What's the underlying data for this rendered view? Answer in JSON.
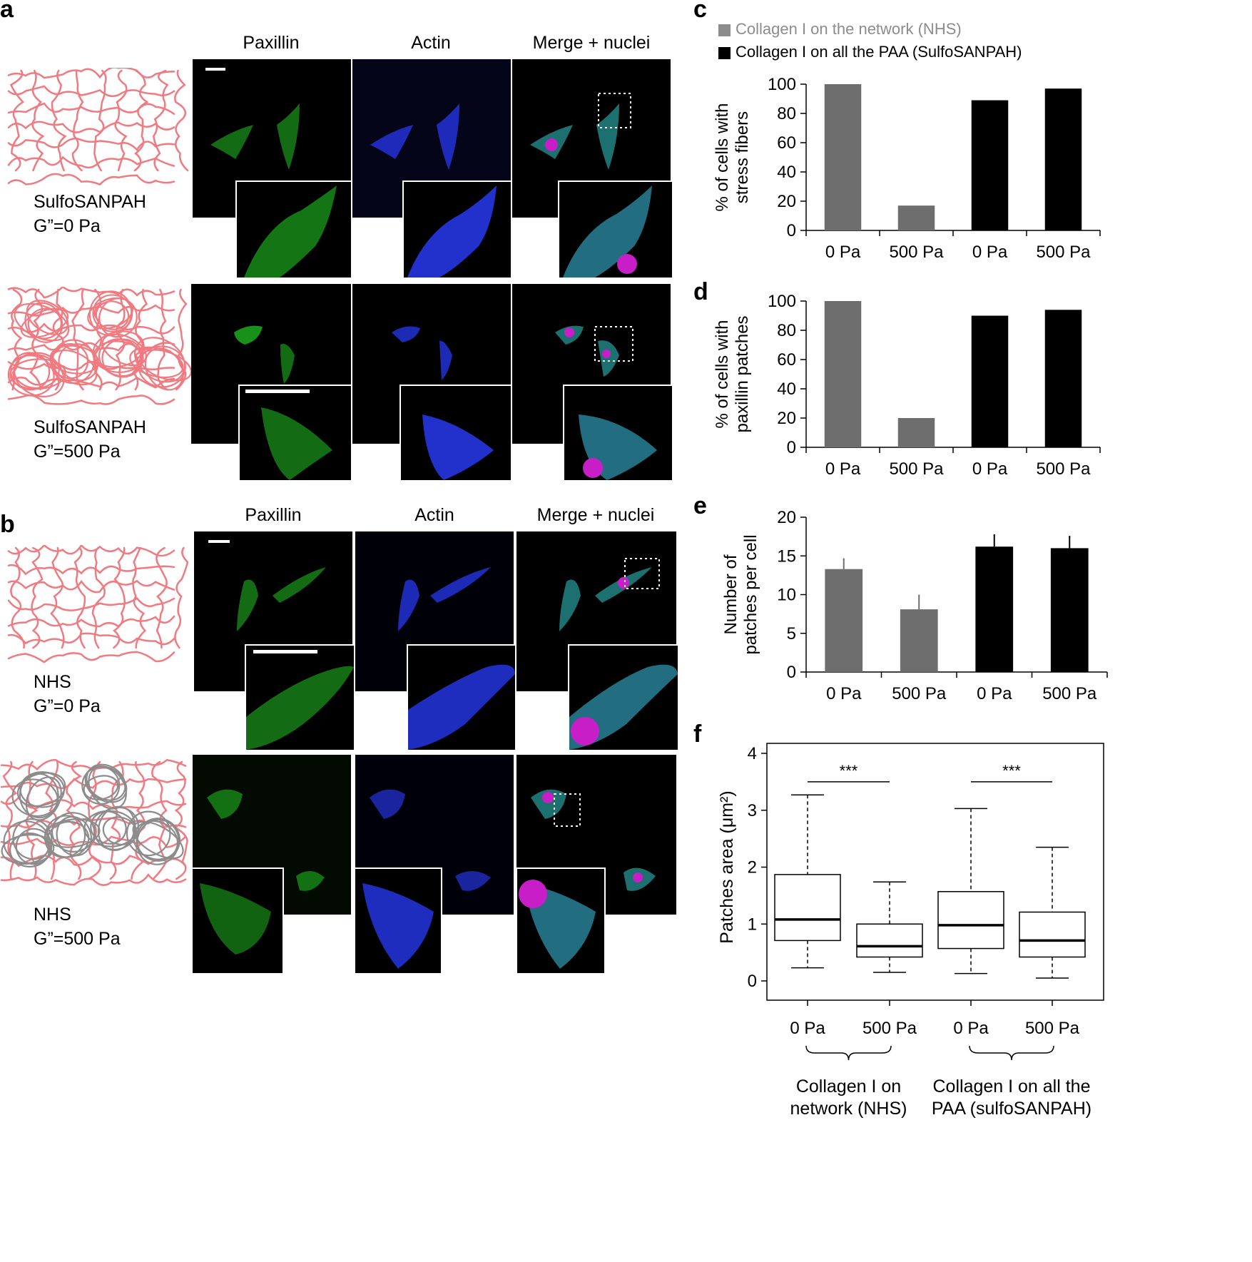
{
  "panel_labels": {
    "a": "a",
    "b": "b",
    "c": "c",
    "d": "d",
    "e": "e",
    "f": "f"
  },
  "panel_a": {
    "columns": [
      "Paxillin",
      "Actin",
      "Merge + nuclei"
    ],
    "rows": [
      {
        "line1": "SulfoSANPAH",
        "line2": "G”=0 Pa"
      },
      {
        "line1": "SulfoSANPAH",
        "line2": "G”=500 Pa"
      }
    ]
  },
  "panel_b": {
    "columns": [
      "Paxillin",
      "Actin",
      "Merge + nuclei"
    ],
    "rows": [
      {
        "line1": "NHS",
        "line2": "G”=0 Pa"
      },
      {
        "line1": "NHS",
        "line2": "G”=500 Pa"
      }
    ]
  },
  "colors": {
    "network": "#f07a80",
    "grafted_coil": "#8c8c8c",
    "nhs_bar": "#6e6e6e",
    "sulfo_bar": "#000000",
    "paxillin": "#1fb41f",
    "actin": "#2a3cff",
    "nuclei": "#c81ec8"
  },
  "icons": [
    "polymer-network-diagram",
    "scale-bar",
    "zoom-box"
  ],
  "legend": {
    "nhs": "Collagen I on the network (NHS)",
    "sulfo": "Collagen I on all the PAA (SulfoSANPAH)"
  },
  "chart_data": [
    {
      "id": "c",
      "type": "bar",
      "ylabel_line1": "% of cells with",
      "ylabel_line2": "stress fibers",
      "categories": [
        "0 Pa",
        "500 Pa",
        "0 Pa",
        "500 Pa"
      ],
      "groups": [
        "nhs",
        "nhs",
        "sulfo",
        "sulfo"
      ],
      "values": [
        100,
        17,
        89,
        97
      ],
      "ylim": [
        0,
        100
      ],
      "yticks": [
        0,
        20,
        40,
        60,
        80,
        100
      ]
    },
    {
      "id": "d",
      "type": "bar",
      "ylabel_line1": "% of cells with",
      "ylabel_line2": "paxillin patches",
      "categories": [
        "0 Pa",
        "500 Pa",
        "0 Pa",
        "500 Pa"
      ],
      "groups": [
        "nhs",
        "nhs",
        "sulfo",
        "sulfo"
      ],
      "values": [
        100,
        20,
        90,
        94
      ],
      "ylim": [
        0,
        100
      ],
      "yticks": [
        0,
        20,
        40,
        60,
        80,
        100
      ]
    },
    {
      "id": "e",
      "type": "bar",
      "ylabel_line1": "Number of",
      "ylabel_line2": "patches per cell",
      "categories": [
        "0 Pa",
        "500 Pa",
        "0 Pa",
        "500 Pa"
      ],
      "groups": [
        "nhs",
        "nhs",
        "sulfo",
        "sulfo"
      ],
      "values": [
        13.3,
        8.1,
        16.2,
        16.0
      ],
      "errors": [
        1.3,
        1.8,
        1.5,
        1.5
      ],
      "ylim": [
        0,
        20
      ],
      "yticks": [
        0,
        5,
        10,
        15,
        20
      ]
    },
    {
      "id": "f",
      "type": "box",
      "ylabel": "Patches area (μm²)",
      "categories": [
        "0 Pa",
        "500 Pa",
        "0 Pa",
        "500 Pa"
      ],
      "boxes": [
        {
          "min": 0.23,
          "q1": 0.71,
          "median": 1.08,
          "q3": 1.87,
          "max": 3.27
        },
        {
          "min": 0.15,
          "q1": 0.42,
          "median": 0.61,
          "q3": 1.0,
          "max": 1.74
        },
        {
          "min": 0.13,
          "q1": 0.57,
          "median": 0.98,
          "q3": 1.57,
          "max": 3.03
        },
        {
          "min": 0.05,
          "q1": 0.42,
          "median": 0.71,
          "q3": 1.21,
          "max": 2.35
        }
      ],
      "ylim": [
        0,
        4
      ],
      "yticks": [
        0,
        1,
        2,
        3,
        4
      ],
      "significance": [
        "***",
        "***"
      ],
      "group_labels": [
        {
          "line1": "Collagen I on",
          "line2": "network (NHS)"
        },
        {
          "line1": "Collagen I on all the",
          "line2": "PAA (sulfoSANPAH)"
        }
      ]
    }
  ]
}
